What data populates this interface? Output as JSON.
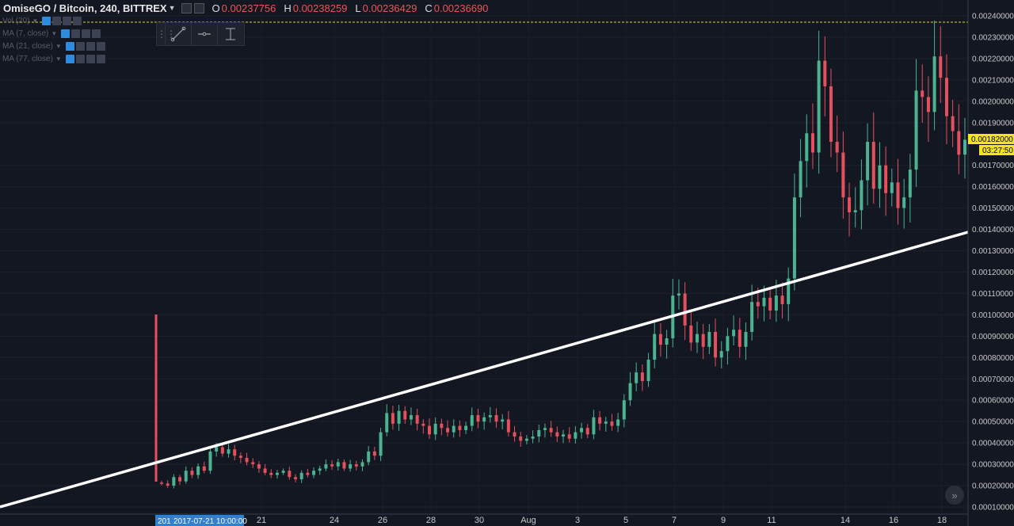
{
  "header": {
    "symbol": "OmiseGO / Bitcoin, 240, BITTREX",
    "o_label": "O",
    "o_value": "0.00237756",
    "h_label": "H",
    "h_value": "0.00238259",
    "l_label": "L",
    "l_value": "0.00236429",
    "c_label": "C",
    "c_value": "0.00236690"
  },
  "indicators": [
    {
      "label": "Vol (20)"
    },
    {
      "label": "MA (7, close)"
    },
    {
      "label": "MA (21, close)"
    },
    {
      "label": "MA (77, close)"
    }
  ],
  "drawing_tools": [
    "trend-line-icon",
    "horizontal-ray-icon",
    "price-range-icon"
  ],
  "price_axis": {
    "ticks": [
      "0.00240000",
      "0.00230000",
      "0.00220000",
      "0.00210000",
      "0.00200000",
      "0.00190000",
      "0.00170000",
      "0.00160000",
      "0.00150000",
      "0.00140000",
      "0.00130000",
      "0.00120000",
      "0.00110000",
      "0.00100000",
      "0.00090000",
      "0.00080000",
      "0.00070000",
      "0.00060000",
      "0.00050000",
      "0.00040000",
      "0.00030000",
      "0.00020000",
      "0.00010000"
    ],
    "current_price": "0.00182000",
    "countdown": "03:27:50"
  },
  "time_axis": {
    "ticks": [
      "21",
      "24",
      "26",
      "28",
      "30",
      "Aug",
      "3",
      "5",
      "7",
      "9",
      "11",
      "14",
      "16",
      "18"
    ],
    "crosshair_prefix": "201",
    "crosshair_label": "2017-07-21 10:00:00"
  },
  "colors": {
    "background": "#131722",
    "up": "#4bb38f",
    "down": "#e5505d",
    "trendline": "#ffffff",
    "high_line": "#e0d631",
    "price_tag": "#f5e51f",
    "crosshair_tag": "#2f80d1"
  },
  "chart_data": {
    "type": "candlestick",
    "trendline": {
      "from": [
        "2017-07-18 20:00",
        2e-05
      ],
      "to": [
        "2017-08-18 20:00",
        0.00139
      ]
    },
    "ylim": [
      5e-05,
      0.00243
    ],
    "closes": [
      0.00021,
      0.0002,
      0.00024,
      0.00022,
      0.00027,
      0.00025,
      0.00029,
      0.00027,
      0.00036,
      0.00038,
      0.00035,
      0.00037,
      0.00034,
      0.00033,
      0.00031,
      0.0003,
      0.00028,
      0.00026,
      0.00025,
      0.00026,
      0.00027,
      0.00024,
      0.00023,
      0.00026,
      0.00025,
      0.00027,
      0.00028,
      0.0003,
      0.00029,
      0.00031,
      0.00028,
      0.0003,
      0.00029,
      0.00031,
      0.00036,
      0.00034,
      0.00045,
      0.00054,
      0.00049,
      0.00055,
      0.00051,
      0.00053,
      0.00049,
      0.00048,
      0.00044,
      0.00049,
      0.00047,
      0.00045,
      0.00048,
      0.00046,
      0.00048,
      0.00053,
      0.0005,
      0.00052,
      0.00053,
      0.0005,
      0.00051,
      0.00045,
      0.00043,
      0.00041,
      0.00042,
      0.00043,
      0.00046,
      0.00047,
      0.00045,
      0.00043,
      0.00044,
      0.00042,
      0.00045,
      0.00047,
      0.00044,
      0.00052,
      0.00049,
      0.0005,
      0.00048,
      0.00051,
      0.0006,
      0.00068,
      0.00073,
      0.00069,
      0.00079,
      0.00091,
      0.00086,
      0.00089,
      0.00109,
      0.0011,
      0.00095,
      0.00087,
      0.00091,
      0.00085,
      0.00092,
      0.0008,
      0.00083,
      0.0009,
      0.00093,
      0.00085,
      0.00092,
      0.00106,
      0.00104,
      0.00108,
      0.00102,
      0.00109,
      0.00105,
      0.00117,
      0.00155,
      0.00172,
      0.00185,
      0.00176,
      0.00219,
      0.00207,
      0.00181,
      0.00176,
      0.00155,
      0.00148,
      0.00149,
      0.00163,
      0.00181,
      0.00159,
      0.0017,
      0.00157,
      0.00162,
      0.0015,
      0.00155,
      0.00168,
      0.00205,
      0.00202,
      0.00195,
      0.00221,
      0.00211,
      0.00193,
      0.00186,
      0.00175,
      0.00182
    ]
  }
}
